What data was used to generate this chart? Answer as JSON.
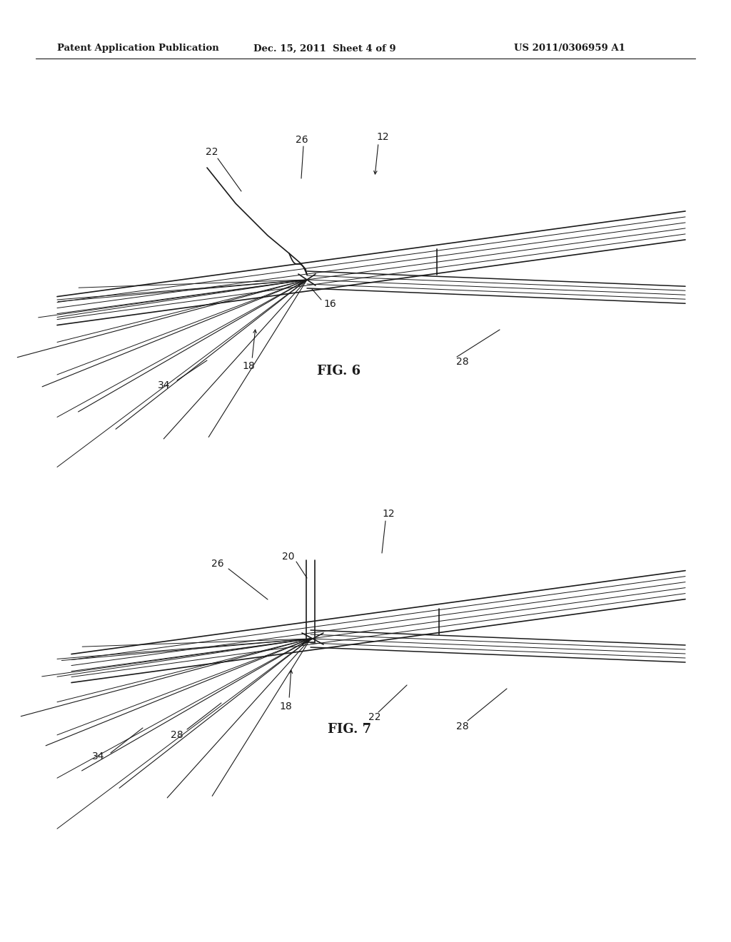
{
  "bg_color": "#ffffff",
  "line_color": "#1a1a1a",
  "text_color": "#1a1a1a",
  "header_left": "Patent Application Publication",
  "header_mid": "Dec. 15, 2011  Sheet 4 of 9",
  "header_right": "US 2011/0306959 A1",
  "fig6_label": "FIG. 6",
  "fig7_label": "FIG. 7"
}
